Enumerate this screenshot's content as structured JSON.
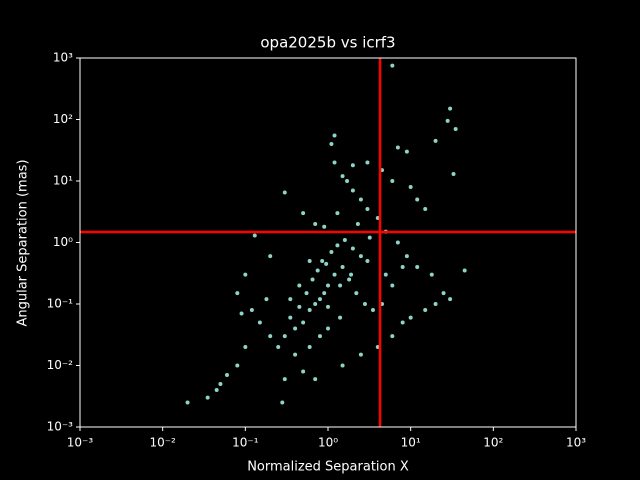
{
  "chart_data": {
    "type": "scatter",
    "title": "opa2025b vs icrf3",
    "x_label": "Normalized Separation X",
    "y_label": "Angular Separation (mas)",
    "log_x": true,
    "log_y": true,
    "color": "#8dd3c7",
    "xlim": [
      0.001,
      1000
    ],
    "ylim": [
      0.001,
      1000
    ],
    "xticks": [
      {
        "value": 0.001,
        "label": "10⁻³"
      },
      {
        "value": 0.01,
        "label": "10⁻²"
      },
      {
        "value": 0.1,
        "label": "10⁻¹"
      },
      {
        "value": 1,
        "label": "10⁰"
      },
      {
        "value": 10,
        "label": "10¹"
      },
      {
        "value": 100,
        "label": "10²"
      },
      {
        "value": 1000,
        "label": "10³"
      }
    ],
    "yticks": [
      {
        "value": 0.001,
        "label": "10⁻³"
      },
      {
        "value": 0.01,
        "label": "10⁻²"
      },
      {
        "value": 0.1,
        "label": "10⁻¹"
      },
      {
        "value": 1,
        "label": "10⁰"
      },
      {
        "value": 10,
        "label": "10¹"
      },
      {
        "value": 100,
        "label": "10²"
      },
      {
        "value": 1000,
        "label": "10³"
      }
    ],
    "reference_lines": {
      "x": 4.26,
      "y": 1.48,
      "color": "#ff0000"
    },
    "x": [
      0.5,
      0.6,
      0.8,
      1.0,
      1.2,
      1.5,
      0.9,
      0.7,
      0.4,
      0.3,
      0.35,
      0.45,
      0.55,
      0.65,
      0.75,
      0.85,
      1.1,
      1.3,
      1.6,
      2.0,
      2.5,
      3.0,
      1.8,
      2.2,
      2.8,
      3.5,
      1.4,
      1.0,
      0.8,
      0.6,
      0.4,
      0.25,
      0.2,
      0.15,
      0.12,
      0.18,
      0.1,
      0.08,
      0.06,
      0.05,
      0.045,
      0.035,
      0.02,
      0.28,
      0.3,
      0.5,
      0.7,
      1.5,
      2.5,
      4,
      6,
      8,
      10,
      15,
      20,
      25,
      30,
      45,
      18,
      12,
      9,
      7,
      5,
      4,
      3,
      2.5,
      2,
      1.7,
      1.5,
      1.2,
      1.1,
      1.2,
      2,
      3,
      4.5,
      6,
      7,
      9,
      10,
      12,
      15,
      20,
      28,
      30,
      35,
      33,
      6,
      0.3,
      0.5,
      0.7,
      0.13,
      0.2,
      0.1,
      0.08,
      0.09,
      2.3,
      3.2,
      1.9,
      0.95,
      1.4,
      0.6,
      0.45,
      5,
      6,
      4.5,
      8,
      0.9,
      1.3,
      1.0,
      0.35
    ],
    "values": [
      0.05,
      0.08,
      0.12,
      0.2,
      0.3,
      0.4,
      0.15,
      0.1,
      0.04,
      0.03,
      0.06,
      0.09,
      0.15,
      0.25,
      0.35,
      0.5,
      0.7,
      0.9,
      1.1,
      0.8,
      0.6,
      0.5,
      0.25,
      0.15,
      0.1,
      0.08,
      0.06,
      0.04,
      0.03,
      0.02,
      0.015,
      0.02,
      0.03,
      0.05,
      0.08,
      0.12,
      0.02,
      0.01,
      0.007,
      0.005,
      0.004,
      0.003,
      0.0025,
      0.0025,
      0.006,
      0.008,
      0.006,
      0.01,
      0.015,
      0.02,
      0.03,
      0.05,
      0.06,
      0.08,
      0.1,
      0.15,
      0.12,
      0.35,
      0.3,
      0.4,
      0.6,
      1.0,
      1.5,
      2.5,
      3.5,
      5,
      7,
      10,
      12,
      20,
      40,
      55,
      18,
      20,
      15,
      10,
      35,
      30,
      8,
      5,
      3.5,
      45,
      95,
      150,
      70,
      13,
      750,
      6.5,
      3,
      2,
      1.3,
      0.6,
      0.3,
      0.15,
      0.07,
      2,
      1.2,
      0.3,
      0.45,
      0.2,
      0.5,
      0.2,
      0.3,
      0.2,
      0.1,
      0.4,
      1.8,
      3,
      0.09,
      0.12
    ]
  }
}
